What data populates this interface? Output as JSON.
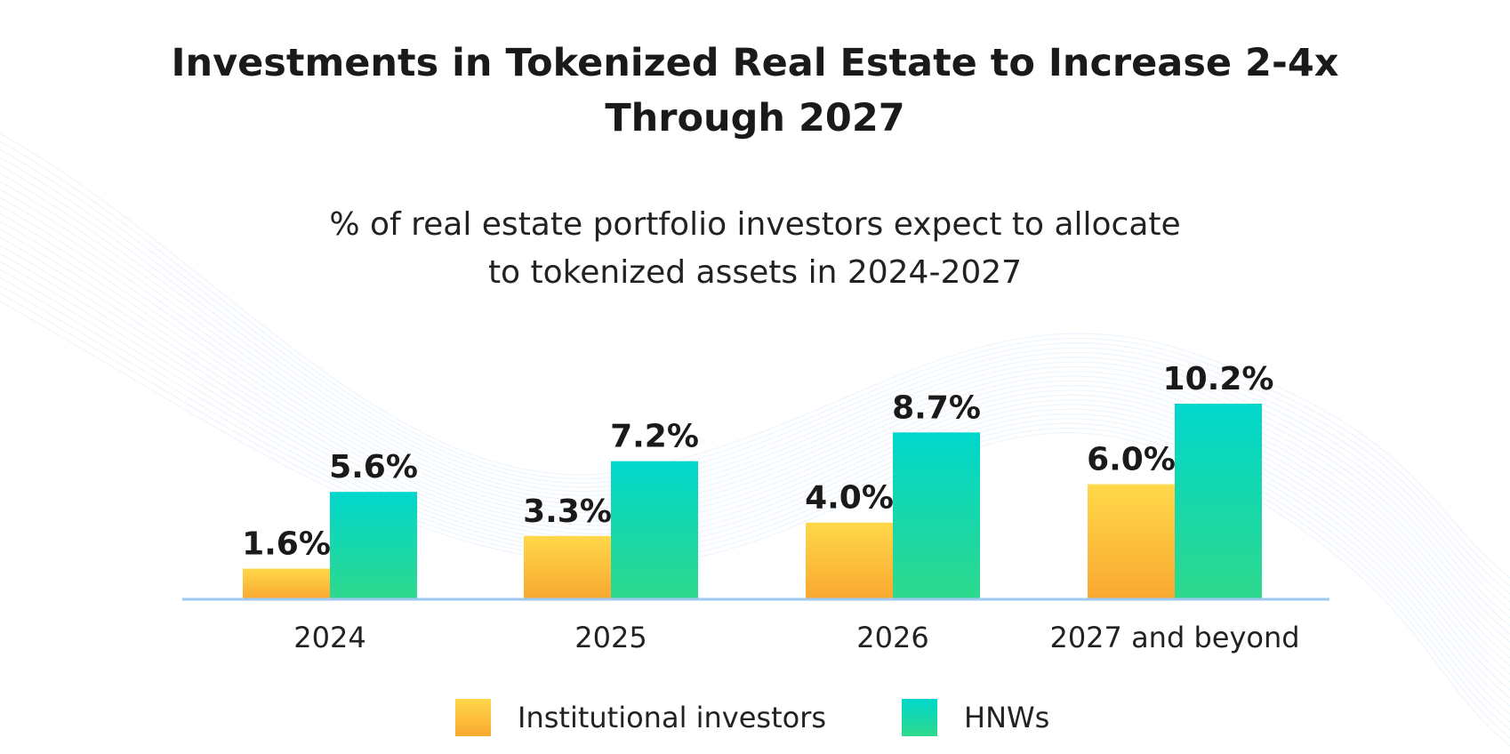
{
  "chart_data": {
    "type": "bar",
    "title_lines": [
      "Investments in Tokenized Real Estate to Increase 2-4x",
      "Through 2027"
    ],
    "subtitle_lines": [
      "% of real estate portfolio investors expect to allocate",
      "to tokenized assets in 2024-2027"
    ],
    "categories": [
      "2024",
      "2025",
      "2026",
      "2027 and beyond"
    ],
    "series": [
      {
        "name": "Institutional investors",
        "values": [
          1.6,
          3.3,
          4.0,
          6.0
        ],
        "labels": [
          "1.6%",
          "3.3%",
          "4.0%",
          "6.0%"
        ]
      },
      {
        "name": "HNWs",
        "values": [
          5.6,
          7.2,
          8.7,
          10.2
        ],
        "labels": [
          "5.6%",
          "7.2%",
          "8.7%",
          "10.2%"
        ]
      }
    ],
    "ylim": [
      0,
      10.2
    ],
    "grid": false,
    "legend": "bottom-center",
    "colors": {
      "institutional_top": "#FFD84A",
      "institutional_bottom": "#F9A830",
      "hnw_top": "#00D7CC",
      "hnw_bottom": "#2ED98C",
      "axis": "#9DC9F2"
    }
  }
}
